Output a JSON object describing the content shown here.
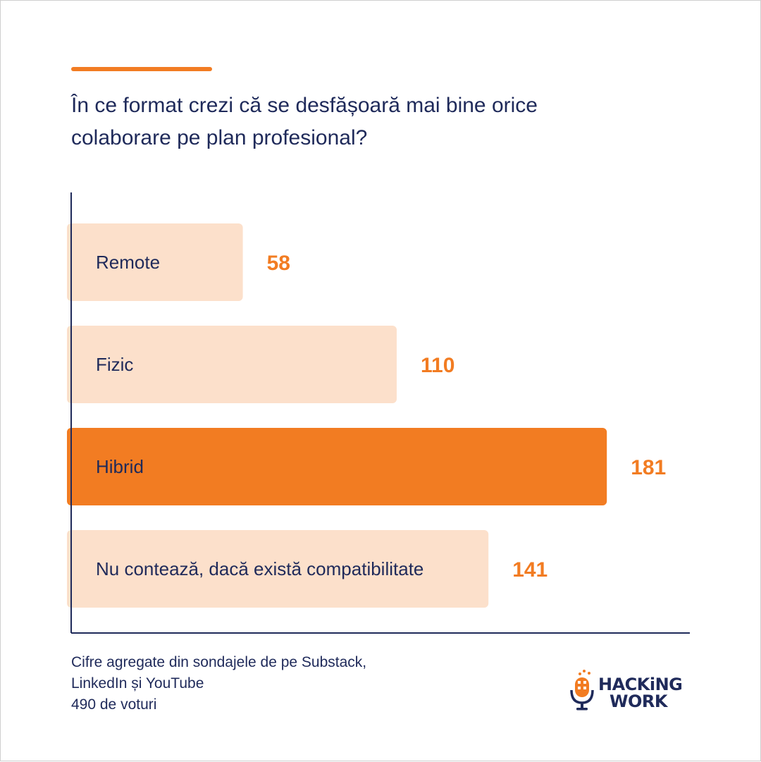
{
  "colors": {
    "accent": "#f27c22",
    "bar_light": "#fce0cb",
    "navy": "#1f2a5a",
    "axis": "#1f2a5a"
  },
  "header": {
    "title_lines": [
      "În ce format crezi că se desfășoară mai bine orice",
      "colaborare pe plan profesional?"
    ]
  },
  "chart_data": {
    "type": "bar",
    "orientation": "horizontal",
    "title": "În ce format crezi că se desfășoară mai bine orice colaborare pe plan profesional?",
    "categories": [
      "Remote",
      "Fizic",
      "Hibrid",
      "Nu contează, dacă există compatibilitate"
    ],
    "values": [
      58,
      110,
      181,
      141
    ],
    "highlight_index": 2,
    "xlim": [
      0,
      220
    ],
    "grid": false,
    "legend": "none"
  },
  "footer": {
    "lines": [
      "Cifre agregate din sondajele de pe Substack,",
      "LinkedIn și YouTube",
      "490 de voturi"
    ]
  },
  "logo": {
    "lines": [
      "HACKiNG",
      "WORK"
    ],
    "icon": "microphone-icon"
  }
}
